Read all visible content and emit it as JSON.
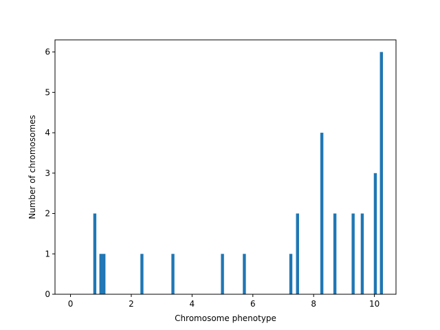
{
  "chart_data": {
    "type": "bar",
    "xlabel": "Chromosome phenotype",
    "ylabel": "Number of chromosomes",
    "xlim": [
      -0.51,
      10.71
    ],
    "ylim": [
      0,
      6.3
    ],
    "xticks": [
      0,
      2,
      4,
      6,
      8,
      10
    ],
    "yticks": [
      0,
      1,
      2,
      3,
      4,
      5,
      6
    ],
    "bar_width": 0.1,
    "bars": [
      {
        "x": 0.8,
        "value": 2
      },
      {
        "x": 1.0,
        "value": 1
      },
      {
        "x": 1.1,
        "value": 1
      },
      {
        "x": 2.35,
        "value": 1
      },
      {
        "x": 3.37,
        "value": 1
      },
      {
        "x": 5.0,
        "value": 1
      },
      {
        "x": 5.72,
        "value": 1
      },
      {
        "x": 7.25,
        "value": 1
      },
      {
        "x": 7.47,
        "value": 2
      },
      {
        "x": 8.27,
        "value": 4
      },
      {
        "x": 8.7,
        "value": 2
      },
      {
        "x": 9.3,
        "value": 2
      },
      {
        "x": 9.6,
        "value": 2
      },
      {
        "x": 10.03,
        "value": 3
      },
      {
        "x": 10.23,
        "value": 6
      }
    ],
    "bar_color": "#1f77b4",
    "grid": false,
    "legend": "none"
  }
}
